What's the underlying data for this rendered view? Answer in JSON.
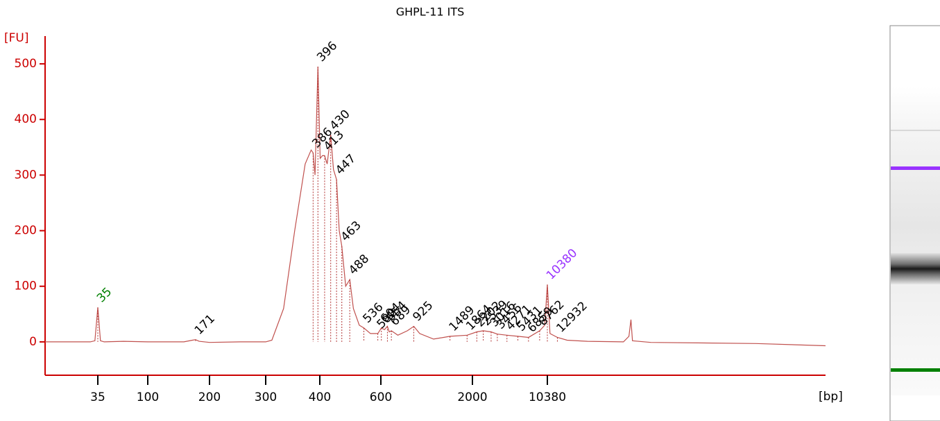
{
  "chart_data": {
    "type": "electropherogram",
    "title": "GHPL-11 ITS",
    "y_label": "[FU]",
    "x_label": "[bp]",
    "axis_color": "#cc0000",
    "xscale": "ladder-log",
    "xlim": [
      12,
      4600000
    ],
    "xticks": [
      35,
      100,
      200,
      300,
      400,
      600,
      2000,
      10380
    ],
    "ylim": [
      -60,
      550
    ],
    "yticks": [
      0,
      100,
      200,
      300,
      400,
      500
    ],
    "trace": {
      "color": "#c0504d",
      "x": [
        12,
        30,
        33,
        35,
        37,
        40,
        60,
        100,
        150,
        165,
        171,
        178,
        200,
        250,
        300,
        310,
        330,
        350,
        370,
        382,
        386,
        390,
        396,
        401,
        407,
        413,
        420,
        430,
        438,
        447,
        455,
        463,
        475,
        488,
        500,
        520,
        536,
        560,
        588,
        604,
        630,
        654,
        670,
        689,
        750,
        850,
        925,
        1000,
        1200,
        1489,
        1864,
        2202,
        2539,
        3016,
        3456,
        4271,
        5431,
        6859,
        8762,
        9800,
        10380,
        11000,
        12932,
        16000,
        25000,
        55000,
        62000,
        64800,
        67000,
        100000,
        1000000,
        4600000
      ],
      "values": [
        0,
        0,
        2,
        62,
        2,
        0,
        1,
        0,
        0,
        3,
        4,
        1,
        -1,
        0,
        0,
        3,
        60,
        200,
        320,
        345,
        340,
        300,
        495,
        330,
        335,
        335,
        320,
        372,
        310,
        292,
        200,
        172,
        100,
        112,
        60,
        30,
        25,
        15,
        15,
        25,
        22,
        28,
        18,
        20,
        12,
        20,
        28,
        15,
        5,
        10,
        12,
        18,
        20,
        18,
        14,
        12,
        10,
        8,
        20,
        30,
        103,
        15,
        8,
        3,
        1,
        0,
        10,
        40,
        2,
        -1,
        -3,
        -7
      ]
    },
    "peaks": {
      "x": [
        35,
        171,
        386,
        396,
        413,
        430,
        447,
        463,
        488,
        536,
        588,
        604,
        654,
        689,
        925,
        1489,
        1864,
        2202,
        2539,
        3016,
        3456,
        4271,
        5431,
        6859,
        8762,
        10380,
        12932
      ],
      "values": [
        62,
        4,
        340,
        495,
        335,
        372,
        292,
        172,
        112,
        25,
        15,
        25,
        28,
        20,
        28,
        10,
        12,
        18,
        20,
        18,
        14,
        12,
        10,
        8,
        20,
        103,
        8
      ],
      "colors": [
        "#008000",
        "#000000",
        "#000000",
        "#000000",
        "#000000",
        "#000000",
        "#000000",
        "#000000",
        "#000000",
        "#000000",
        "#000000",
        "#000000",
        "#000000",
        "#000000",
        "#000000",
        "#000000",
        "#000000",
        "#000000",
        "#000000",
        "#000000",
        "#000000",
        "#000000",
        "#000000",
        "#000000",
        "#000000",
        "#9933ff",
        "#000000"
      ]
    }
  }
}
